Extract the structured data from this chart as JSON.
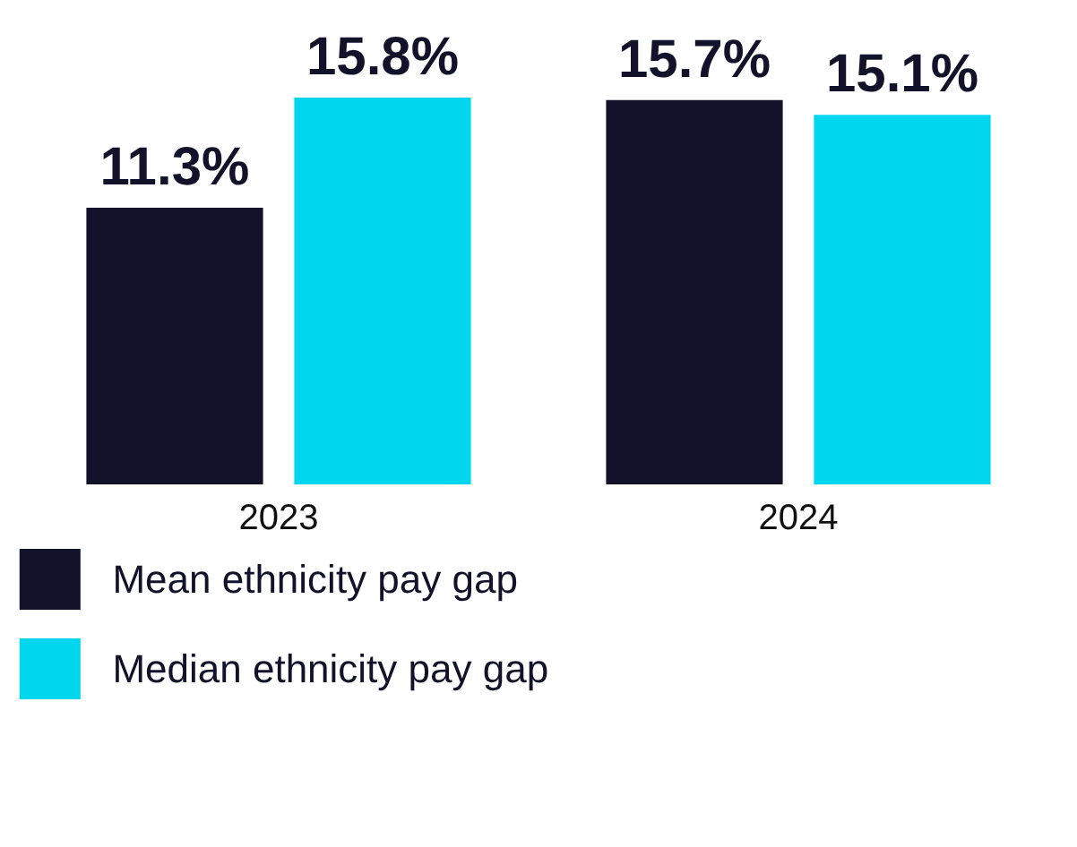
{
  "chart_data": {
    "type": "bar",
    "categories": [
      "2023",
      "2024"
    ],
    "series": [
      {
        "name": "Mean ethnicity pay gap",
        "color": "#12122a",
        "values": [
          11.3,
          15.7
        ],
        "value_labels": [
          "11.3%",
          "15.7%"
        ]
      },
      {
        "name": "Median ethnicity pay gap",
        "color": "#00d7ee",
        "values": [
          15.8,
          15.1
        ],
        "value_labels": [
          "15.8%",
          "15.1%"
        ]
      }
    ],
    "legend": "bottom left"
  }
}
